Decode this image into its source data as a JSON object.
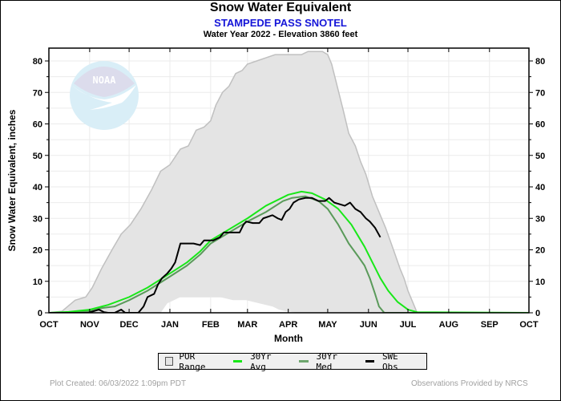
{
  "chart_data": {
    "type": "area",
    "title": "Snow Water Equivalent",
    "subtitle": "STAMPEDE PASS SNOTEL",
    "subtitle2": "Water Year 2022 -  Elevation 3860 feet",
    "xlabel": "Month",
    "ylabel": "Snow Water Equivalent, inches",
    "ylim": [
      0,
      85
    ],
    "xlim_days": [
      0,
      365
    ],
    "yticks": [
      0,
      10,
      20,
      30,
      40,
      50,
      60,
      70,
      80
    ],
    "xticks": [
      {
        "label": "OCT",
        "day": 0
      },
      {
        "label": "NOV",
        "day": 31
      },
      {
        "label": "DEC",
        "day": 61
      },
      {
        "label": "JAN",
        "day": 92
      },
      {
        "label": "FEB",
        "day": 123
      },
      {
        "label": "MAR",
        "day": 151
      },
      {
        "label": "APR",
        "day": 182
      },
      {
        "label": "MAY",
        "day": 212
      },
      {
        "label": "JUN",
        "day": 243
      },
      {
        "label": "JUL",
        "day": 273
      },
      {
        "label": "AUG",
        "day": 304
      },
      {
        "label": "SEP",
        "day": 335
      },
      {
        "label": "OCT",
        "day": 365
      }
    ],
    "grid": true,
    "legend_position": "bottom",
    "watermark": "NOAA",
    "colors": {
      "por_fill": "#e4e4e4",
      "por_edge": "#c0c0c0",
      "avg": "#18e818",
      "med": "#5a9a5a",
      "obs": "#000000"
    },
    "series": [
      {
        "name": "POR Range",
        "kind": "band",
        "upper": [
          [
            0,
            0
          ],
          [
            10,
            0.5
          ],
          [
            20,
            4
          ],
          [
            28,
            5
          ],
          [
            33,
            8
          ],
          [
            40,
            14
          ],
          [
            48,
            20
          ],
          [
            55,
            25
          ],
          [
            62,
            28
          ],
          [
            70,
            33
          ],
          [
            78,
            39
          ],
          [
            85,
            45
          ],
          [
            92,
            47
          ],
          [
            100,
            52
          ],
          [
            106,
            53
          ],
          [
            112,
            58
          ],
          [
            118,
            59
          ],
          [
            123,
            61
          ],
          [
            127,
            66
          ],
          [
            132,
            70
          ],
          [
            137,
            72
          ],
          [
            142,
            76
          ],
          [
            147,
            77
          ],
          [
            151,
            79
          ],
          [
            158,
            80
          ],
          [
            165,
            81
          ],
          [
            172,
            82
          ],
          [
            178,
            82
          ],
          [
            182,
            82
          ],
          [
            188,
            82
          ],
          [
            192,
            82
          ],
          [
            197,
            83
          ],
          [
            203,
            83
          ],
          [
            208,
            83
          ],
          [
            212,
            82
          ],
          [
            215,
            79
          ],
          [
            218,
            74
          ],
          [
            221,
            69
          ],
          [
            224,
            64
          ],
          [
            228,
            57
          ],
          [
            233,
            53
          ],
          [
            237,
            48
          ],
          [
            241,
            44
          ],
          [
            246,
            37
          ],
          [
            251,
            32
          ],
          [
            256,
            27
          ],
          [
            262,
            20
          ],
          [
            267,
            14
          ],
          [
            270,
            11
          ],
          [
            273,
            7
          ],
          [
            277,
            3
          ],
          [
            280,
            0
          ],
          [
            365,
            0
          ]
        ],
        "lower": [
          [
            0,
            0
          ],
          [
            85,
            0
          ],
          [
            90,
            3
          ],
          [
            100,
            5
          ],
          [
            110,
            5
          ],
          [
            120,
            5
          ],
          [
            130,
            5
          ],
          [
            140,
            4
          ],
          [
            150,
            4
          ],
          [
            160,
            3
          ],
          [
            170,
            2
          ],
          [
            175,
            1
          ],
          [
            180,
            0.5
          ],
          [
            190,
            0
          ],
          [
            365,
            0
          ]
        ]
      },
      {
        "name": "30Yr Avg",
        "kind": "line",
        "points": [
          [
            0,
            0
          ],
          [
            15,
            0.3
          ],
          [
            31,
            1
          ],
          [
            45,
            2.5
          ],
          [
            61,
            5
          ],
          [
            75,
            8
          ],
          [
            92,
            12.5
          ],
          [
            105,
            16
          ],
          [
            115,
            19.5
          ],
          [
            123,
            23
          ],
          [
            135,
            26
          ],
          [
            151,
            30
          ],
          [
            165,
            34
          ],
          [
            182,
            37.5
          ],
          [
            192,
            38.5
          ],
          [
            200,
            38
          ],
          [
            210,
            36
          ],
          [
            220,
            33
          ],
          [
            230,
            28
          ],
          [
            240,
            21
          ],
          [
            246,
            16
          ],
          [
            252,
            11
          ],
          [
            258,
            7
          ],
          [
            265,
            3.5
          ],
          [
            273,
            1
          ],
          [
            280,
            0.2
          ],
          [
            365,
            0
          ]
        ]
      },
      {
        "name": "30Yr Med",
        "kind": "line",
        "points": [
          [
            0,
            0
          ],
          [
            20,
            0.2
          ],
          [
            31,
            0.5
          ],
          [
            40,
            1.5
          ],
          [
            50,
            2
          ],
          [
            61,
            4
          ],
          [
            75,
            7
          ],
          [
            92,
            11.5
          ],
          [
            105,
            15
          ],
          [
            115,
            18.5
          ],
          [
            123,
            22
          ],
          [
            135,
            25
          ],
          [
            151,
            29
          ],
          [
            165,
            32
          ],
          [
            178,
            35.5
          ],
          [
            185,
            36.5
          ],
          [
            195,
            37
          ],
          [
            205,
            35.5
          ],
          [
            212,
            33
          ],
          [
            220,
            28
          ],
          [
            228,
            22
          ],
          [
            235,
            18
          ],
          [
            240,
            15
          ],
          [
            244,
            11
          ],
          [
            248,
            6
          ],
          [
            251,
            2
          ],
          [
            255,
            0
          ],
          [
            365,
            0
          ]
        ]
      },
      {
        "name": "SWE Obs",
        "kind": "line",
        "points": [
          [
            0,
            0
          ],
          [
            30,
            0
          ],
          [
            38,
            1
          ],
          [
            42,
            0.2
          ],
          [
            45,
            0
          ],
          [
            50,
            0
          ],
          [
            55,
            1
          ],
          [
            58,
            0
          ],
          [
            62,
            0
          ],
          [
            68,
            0
          ],
          [
            72,
            2
          ],
          [
            75,
            5
          ],
          [
            80,
            6
          ],
          [
            83,
            9
          ],
          [
            86,
            11
          ],
          [
            90,
            12.5
          ],
          [
            93,
            14
          ],
          [
            96,
            16
          ],
          [
            98,
            19
          ],
          [
            100,
            22
          ],
          [
            105,
            22
          ],
          [
            110,
            22
          ],
          [
            115,
            21.5
          ],
          [
            118,
            23
          ],
          [
            125,
            23
          ],
          [
            130,
            24
          ],
          [
            133,
            25.5
          ],
          [
            140,
            25.5
          ],
          [
            145,
            25.5
          ],
          [
            148,
            28
          ],
          [
            150,
            29
          ],
          [
            155,
            28.5
          ],
          [
            160,
            28.5
          ],
          [
            163,
            30
          ],
          [
            170,
            31
          ],
          [
            174,
            30
          ],
          [
            177,
            29.5
          ],
          [
            180,
            32
          ],
          [
            183,
            33
          ],
          [
            186,
            35
          ],
          [
            190,
            36
          ],
          [
            195,
            36.5
          ],
          [
            200,
            36.5
          ],
          [
            205,
            35.5
          ],
          [
            210,
            35.5
          ],
          [
            213,
            36.5
          ],
          [
            217,
            35
          ],
          [
            221,
            34.5
          ],
          [
            225,
            34
          ],
          [
            229,
            35
          ],
          [
            233,
            33
          ],
          [
            237,
            32
          ],
          [
            241,
            30
          ],
          [
            244,
            29
          ],
          [
            248,
            27
          ],
          [
            252,
            24
          ]
        ]
      }
    ]
  },
  "legend": {
    "items": [
      "POR Range",
      "30Yr Avg",
      "30Yr Med",
      "SWE Obs"
    ]
  },
  "footer": {
    "created": "Plot Created: 06/03/2022 1:09pm PDT",
    "credit": "Observations Provided by NRCS"
  }
}
